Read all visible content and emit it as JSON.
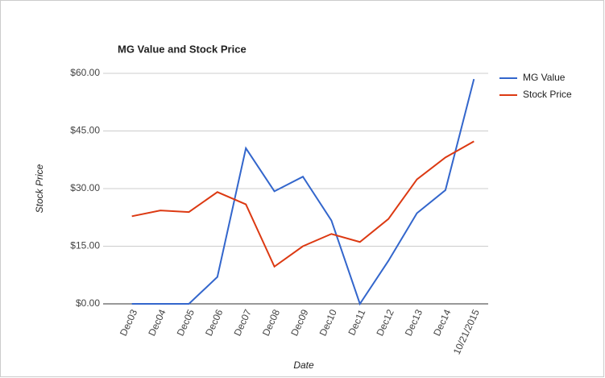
{
  "chart_data": {
    "type": "line",
    "title": "MG Value and Stock Price",
    "x_label": "Date",
    "y_label": "Stock Price",
    "categories": [
      "Dec03",
      "Dec04",
      "Dec05",
      "Dec06",
      "Dec07",
      "Dec08",
      "Dec09",
      "Dec10",
      "Dec11",
      "Dec12",
      "Dec13",
      "Dec14",
      "10/21/2015"
    ],
    "series": [
      {
        "name": "MG Value",
        "color": "#3366cc",
        "values": [
          0,
          0,
          0,
          7,
          40.5,
          29.3,
          33.1,
          21.7,
          0,
          11.2,
          23.6,
          29.6,
          58.5
        ]
      },
      {
        "name": "Stock Price",
        "color": "#dc3912",
        "values": [
          22.8,
          24.3,
          23.9,
          29.1,
          25.9,
          9.7,
          15.0,
          18.2,
          16.1,
          22.1,
          32.4,
          38.1,
          42.3
        ]
      }
    ],
    "ylim": [
      0,
      60
    ],
    "yticks": [
      {
        "value": 0,
        "label": "$0.00"
      },
      {
        "value": 15,
        "label": "$15.00"
      },
      {
        "value": 30,
        "label": "$30.00"
      },
      {
        "value": 45,
        "label": "$45.00"
      },
      {
        "value": 60,
        "label": "$60.00"
      }
    ],
    "grid": true,
    "legend": "right"
  }
}
